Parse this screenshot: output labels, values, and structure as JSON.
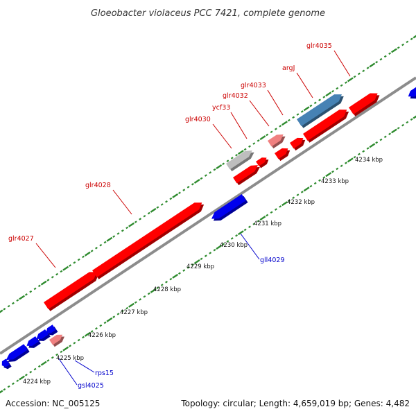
{
  "title": "Gloeobacter violaceus PCC 7421, complete genome",
  "footer": {
    "accession": "Accession: NC_005125",
    "summary": "Topology: circular; Length: 4,659,019 bp; Genes: 4,482"
  },
  "colors": {
    "forward_gene": "#ff0000",
    "reverse_gene": "#0000ee",
    "pseudo_gene": "#f08080",
    "rna_gene": "#4682b4",
    "hypothetical_gene": "#bebebe",
    "backbone": "#8c8c8c",
    "tick": "#2e8b2e",
    "label_forward": "#cc0000",
    "label_reverse": "#0000cc"
  },
  "scale_labels": [
    "4224 kbp",
    "4225 kbp",
    "4226 kbp",
    "4227 kbp",
    "4228 kbp",
    "4229 kbp",
    "4230 kbp",
    "4231 kbp",
    "4232 kbp",
    "4233 kbp",
    "4234 kbp"
  ],
  "genes": [
    {
      "name": "glr4027",
      "strand": "forward",
      "color": "forward_gene"
    },
    {
      "name": "glr4028",
      "strand": "forward",
      "color": "forward_gene"
    },
    {
      "name": "gll4029",
      "strand": "reverse",
      "color": "reverse_gene"
    },
    {
      "name": "glr4030",
      "strand": "forward",
      "color": "hypothetical_gene"
    },
    {
      "name": "ycf33",
      "strand": "forward",
      "color": "forward_gene"
    },
    {
      "name": "glr4032",
      "strand": "forward",
      "color": "pseudo_gene"
    },
    {
      "name": "glr4033",
      "strand": "forward",
      "color": "forward_gene"
    },
    {
      "name": "argJ",
      "strand": "forward",
      "color": "rna_gene"
    },
    {
      "name": "glr4035",
      "strand": "forward",
      "color": "forward_gene"
    },
    {
      "name": "gsl4025",
      "strand": "reverse",
      "color": "reverse_gene"
    },
    {
      "name": "rps15",
      "strand": "reverse",
      "color": "reverse_gene"
    }
  ]
}
